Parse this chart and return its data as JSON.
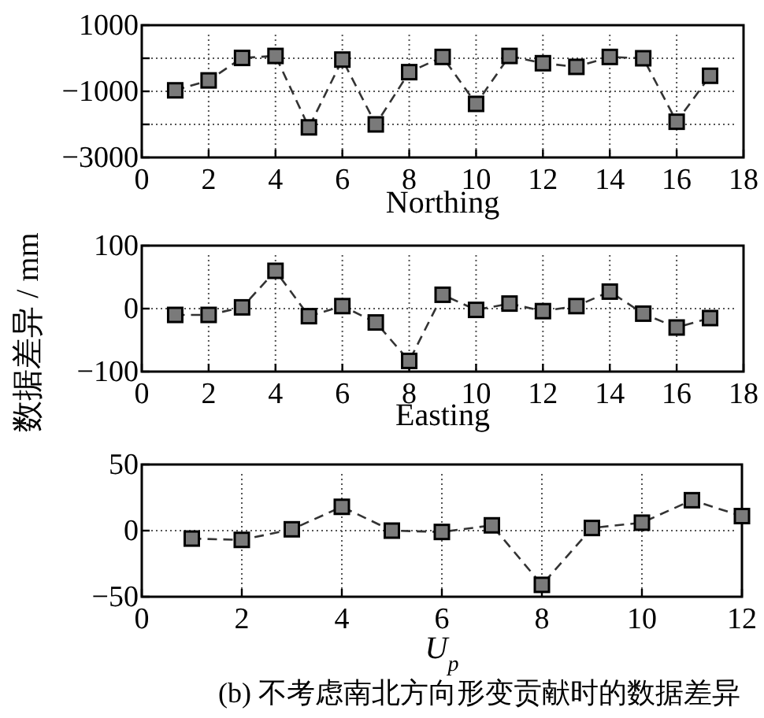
{
  "chart_data": [
    {
      "type": "line",
      "xlabel": "Northing",
      "x": [
        1,
        2,
        3,
        4,
        5,
        6,
        7,
        8,
        9,
        10,
        11,
        12,
        13,
        14,
        15,
        16,
        17
      ],
      "series": [
        {
          "color": "#7a7a7a",
          "values": [
            -970,
            -670,
            10,
            70,
            -2090,
            -40,
            -2000,
            -420,
            40,
            -1380,
            70,
            -150,
            -260,
            40,
            0,
            -1920,
            -530
          ]
        }
      ],
      "xlim": [
        0,
        18
      ],
      "xticks": [
        0,
        2,
        4,
        6,
        8,
        10,
        12,
        14,
        16,
        18
      ],
      "ylim": [
        -3000,
        1000
      ],
      "yticks": [
        -3000,
        {
          "value": -2000,
          "label": null
        },
        -1000,
        {
          "value": 0,
          "label": null
        },
        1000
      ],
      "grid": true,
      "marker": "square",
      "line_style": "dashed"
    },
    {
      "type": "line",
      "xlabel": "Easting",
      "ylabel": "数据差异 / mm",
      "x": [
        1,
        2,
        3,
        4,
        5,
        6,
        7,
        8,
        9,
        10,
        11,
        12,
        13,
        14,
        15,
        16,
        17
      ],
      "series": [
        {
          "color": "#7a7a7a",
          "values": [
            -10,
            -10,
            2,
            60,
            -12,
            4,
            -22,
            -83,
            22,
            -2,
            8,
            -4,
            4,
            27,
            -8,
            -30,
            -15
          ]
        }
      ],
      "xlim": [
        0,
        18
      ],
      "xticks": [
        0,
        2,
        4,
        6,
        8,
        10,
        12,
        14,
        16,
        18
      ],
      "ylim": [
        -100,
        100
      ],
      "yticks": [
        -100,
        0,
        100
      ],
      "grid": true,
      "marker": "square",
      "line_style": "dashed"
    },
    {
      "type": "line",
      "xlabel": "*U*$_{p}$",
      "annotations": [
        "(b) 不考虑南北方向形变贡献时的数据差异"
      ],
      "x": [
        1,
        2,
        3,
        4,
        5,
        6,
        7,
        8,
        9,
        10,
        11,
        12
      ],
      "series": [
        {
          "color": "#7a7a7a",
          "values": [
            -6,
            -7,
            1,
            18,
            0,
            -1,
            4,
            -41,
            2,
            6,
            23,
            11
          ]
        }
      ],
      "xlim": [
        0,
        12
      ],
      "xticks": [
        0,
        2,
        4,
        6,
        8,
        10,
        12
      ],
      "ylim": [
        -50,
        50
      ],
      "yticks": [
        -50,
        0,
        50
      ],
      "grid": true,
      "marker": "square",
      "line_style": "dashed"
    }
  ]
}
